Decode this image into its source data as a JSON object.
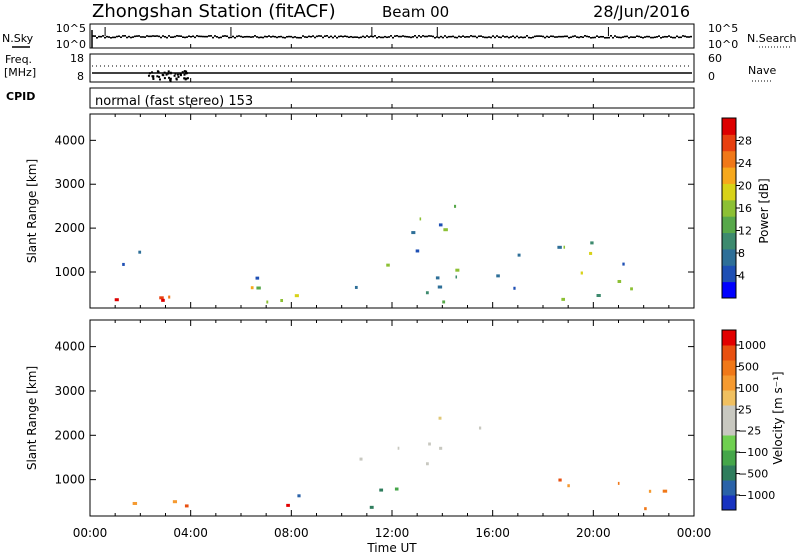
{
  "header": {
    "title": "Zhongshan Station (fitACF)",
    "beam": "Beam 00",
    "date": "28/Jun/2016"
  },
  "summary": {
    "left_top_label": "N.Sky",
    "left_mid_label_line1": "Freq.",
    "left_mid_label_line2": "[MHz]",
    "cpid_label": "CPID",
    "right_top_label": "N.Search",
    "right_mid_label": "Nave",
    "nsky_ticks": [
      "10^5",
      "10^0"
    ],
    "nsearch_ticks": [
      "10^5",
      "10^0"
    ],
    "freq_ticks": [
      "18",
      "8"
    ],
    "nave_ticks": [
      "60",
      "0"
    ],
    "cpid_text": "normal (fast stereo) 153"
  },
  "chart_data": [
    {
      "type": "heatmap",
      "title": "",
      "xlabel": "",
      "ylabel": "Slant Range [km]",
      "xlim": [
        0,
        24
      ],
      "ylim": [
        180,
        4600
      ],
      "yticks": [
        1000,
        2000,
        3000,
        4000
      ],
      "colorbar": {
        "label": "Power [dB]",
        "ticks": [
          "4",
          "8",
          "12",
          "16",
          "20",
          "24",
          "28"
        ],
        "colors": [
          "#0000ff",
          "#1e4fb4",
          "#2e6f98",
          "#3d8a6e",
          "#57a84a",
          "#8cc034",
          "#d8d218",
          "#f6a81c",
          "#f07818",
          "#e84010",
          "#dd0000"
        ]
      },
      "regions": [
        {
          "t": [
            0.0,
            4.2
          ],
          "r": [
            300,
            900
          ],
          "level": "mixed-high"
        },
        {
          "t": [
            1.0,
            3.5
          ],
          "r": [
            1000,
            1500
          ],
          "level": "low"
        },
        {
          "t": [
            5.5,
            9.0
          ],
          "r": [
            300,
            1700
          ],
          "level": "mixed"
        },
        {
          "t": [
            10.5,
            15.5
          ],
          "r": [
            300,
            2500
          ],
          "level": "mixed"
        },
        {
          "t": [
            16.0,
            17.2
          ],
          "r": [
            300,
            1800
          ],
          "level": "low"
        },
        {
          "t": [
            18.0,
            24.0
          ],
          "r": [
            300,
            1800
          ],
          "level": "mixed"
        }
      ]
    },
    {
      "type": "heatmap",
      "title": "",
      "xlabel": "Time UT",
      "ylabel": "Slant Range [km]",
      "xlim": [
        0,
        24
      ],
      "ylim": [
        180,
        4600
      ],
      "xticks": [
        "00:00",
        "04:00",
        "08:00",
        "12:00",
        "16:00",
        "20:00",
        "00:00"
      ],
      "yticks": [
        1000,
        2000,
        3000,
        4000
      ],
      "colorbar": {
        "label": "Velocity [m s⁻¹]",
        "ticks": [
          "1000",
          "500",
          "100",
          "25",
          "−25",
          "−100",
          "−500",
          "−1000"
        ],
        "colors": [
          "#1833c0",
          "#2a62a8",
          "#2f7d5d",
          "#45a64a",
          "#6fd050",
          "#c8c8c0",
          "#c8c8c0",
          "#f0c060",
          "#f59a30",
          "#f07818",
          "#e85010",
          "#e20000"
        ]
      },
      "regions": [
        {
          "t": [
            0.0,
            4.2
          ],
          "r": [
            300,
            900
          ],
          "level": "negative"
        },
        {
          "t": [
            5.5,
            9.0
          ],
          "r": [
            300,
            1000
          ],
          "level": "mixed"
        },
        {
          "t": [
            10.5,
            15.5
          ],
          "r": [
            300,
            900
          ],
          "level": "positive-green"
        },
        {
          "t": [
            10.5,
            15.5
          ],
          "r": [
            1300,
            2500
          ],
          "level": "near-zero-grey"
        },
        {
          "t": [
            18.0,
            24.0
          ],
          "r": [
            300,
            1000
          ],
          "level": "negative"
        }
      ]
    }
  ]
}
